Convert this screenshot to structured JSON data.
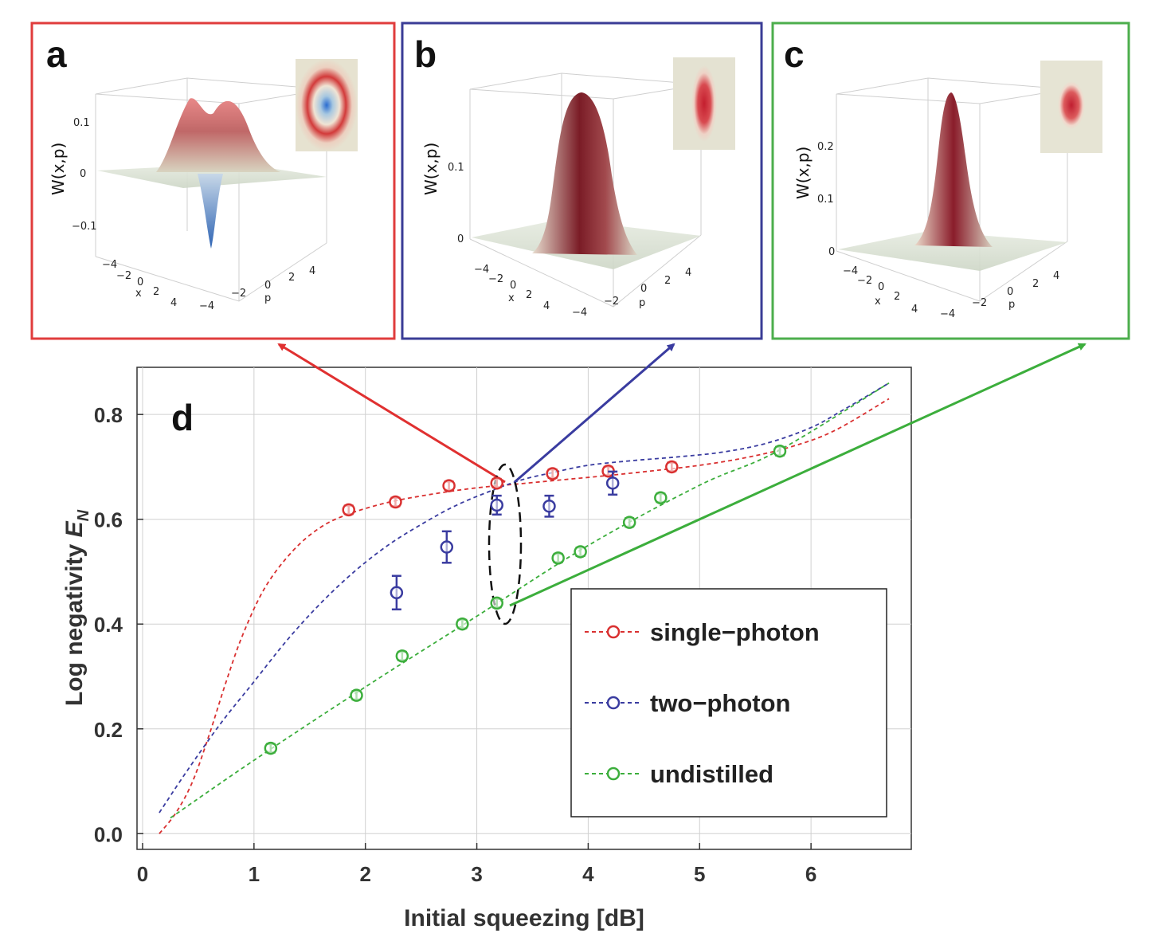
{
  "panels": [
    {
      "letter": "a",
      "frame_color": "#e03c3c",
      "z_label": "W(x,p)",
      "z_ticks": [
        "0.1",
        "0",
        "−0.1"
      ],
      "x_label": "x",
      "p_label": "p",
      "x_ticks": [
        "−4",
        "−2",
        "0",
        "2",
        "4"
      ],
      "p_ticks": [
        "−4",
        "−2",
        "0",
        "2",
        "4"
      ]
    },
    {
      "letter": "b",
      "frame_color": "#3a3c96",
      "z_label": "W(x,p)",
      "z_ticks": [
        "0.1",
        "0"
      ],
      "x_label": "x",
      "p_label": "p",
      "x_ticks": [
        "−4",
        "−2",
        "0",
        "2",
        "4"
      ],
      "p_ticks": [
        "−4",
        "−2",
        "0",
        "2",
        "4"
      ]
    },
    {
      "letter": "c",
      "frame_color": "#4cae4c",
      "z_label": "W(x,p)",
      "z_ticks": [
        "0.2",
        "0.1",
        "0"
      ],
      "x_label": "x",
      "p_label": "p",
      "x_ticks": [
        "−4",
        "−2",
        "0",
        "2",
        "4"
      ],
      "p_ticks": [
        "−4",
        "−2",
        "0",
        "2",
        "4"
      ]
    }
  ],
  "chart_data": {
    "type": "scatter",
    "panel_label": "d",
    "xlabel": "Initial squeezing [dB]",
    "ylabel_prefix": "Log negativity ",
    "ylabel_symbol": "E",
    "ylabel_subscript": "N",
    "xlim": [
      -0.05,
      6.9
    ],
    "ylim": [
      -0.03,
      0.89
    ],
    "xticks": [
      "0",
      "1",
      "2",
      "3",
      "4",
      "5",
      "6"
    ],
    "yticks": [
      "0.0",
      "0.2",
      "0.4",
      "0.6",
      "0.8"
    ],
    "grid": true,
    "legend_position": "bottom-right",
    "series": [
      {
        "name": "single−photon",
        "color": "#d93030",
        "x": [
          1.85,
          2.27,
          2.75,
          3.18,
          3.68,
          4.18,
          4.75
        ],
        "y": [
          0.618,
          0.633,
          0.664,
          0.669,
          0.687,
          0.692,
          0.7
        ],
        "err": [
          0.008,
          0.008,
          0.008,
          0.008,
          0.008,
          0.008,
          0.008
        ],
        "fit_x": [
          0.15,
          0.3,
          0.45,
          0.6,
          0.75,
          0.9,
          1.1,
          1.35,
          1.6,
          1.85,
          2.2,
          2.6,
          3.0,
          3.4,
          3.8,
          4.2,
          4.6,
          5.0,
          5.4,
          5.8,
          6.2,
          6.7
        ],
        "fit_y": [
          0.0,
          0.04,
          0.1,
          0.19,
          0.29,
          0.38,
          0.47,
          0.54,
          0.585,
          0.61,
          0.632,
          0.648,
          0.66,
          0.668,
          0.676,
          0.684,
          0.693,
          0.703,
          0.717,
          0.737,
          0.768,
          0.83
        ]
      },
      {
        "name": "two−photon",
        "color": "#3a3ca0",
        "x": [
          2.28,
          2.73,
          3.18,
          3.65,
          4.22
        ],
        "y": [
          0.46,
          0.547,
          0.627,
          0.625,
          0.669
        ],
        "err": [
          0.032,
          0.03,
          0.018,
          0.02,
          0.022
        ],
        "fit_x": [
          0.15,
          0.4,
          0.7,
          1.0,
          1.3,
          1.6,
          1.9,
          2.2,
          2.5,
          2.8,
          3.1,
          3.4,
          3.7,
          4.0,
          4.4,
          4.8,
          5.2,
          5.6,
          6.0,
          6.3,
          6.7
        ],
        "fit_y": [
          0.04,
          0.12,
          0.21,
          0.29,
          0.37,
          0.44,
          0.5,
          0.55,
          0.59,
          0.625,
          0.652,
          0.675,
          0.69,
          0.703,
          0.712,
          0.719,
          0.728,
          0.745,
          0.775,
          0.81,
          0.86
        ]
      },
      {
        "name": "undistilled",
        "color": "#3cae3c",
        "x": [
          1.15,
          1.92,
          2.33,
          2.87,
          3.18,
          3.73,
          3.93,
          4.37,
          4.65,
          5.72
        ],
        "y": [
          0.163,
          0.264,
          0.339,
          0.4,
          0.44,
          0.526,
          0.538,
          0.594,
          0.641,
          0.73
        ],
        "err": [
          0.008,
          0.008,
          0.008,
          0.008,
          0.008,
          0.008,
          0.008,
          0.008,
          0.008,
          0.008
        ],
        "fit_x": [
          0.25,
          1.0,
          2.0,
          3.0,
          4.0,
          5.0,
          5.7,
          6.7
        ],
        "fit_y": [
          0.03,
          0.14,
          0.28,
          0.415,
          0.55,
          0.665,
          0.73,
          0.86
        ]
      }
    ]
  }
}
